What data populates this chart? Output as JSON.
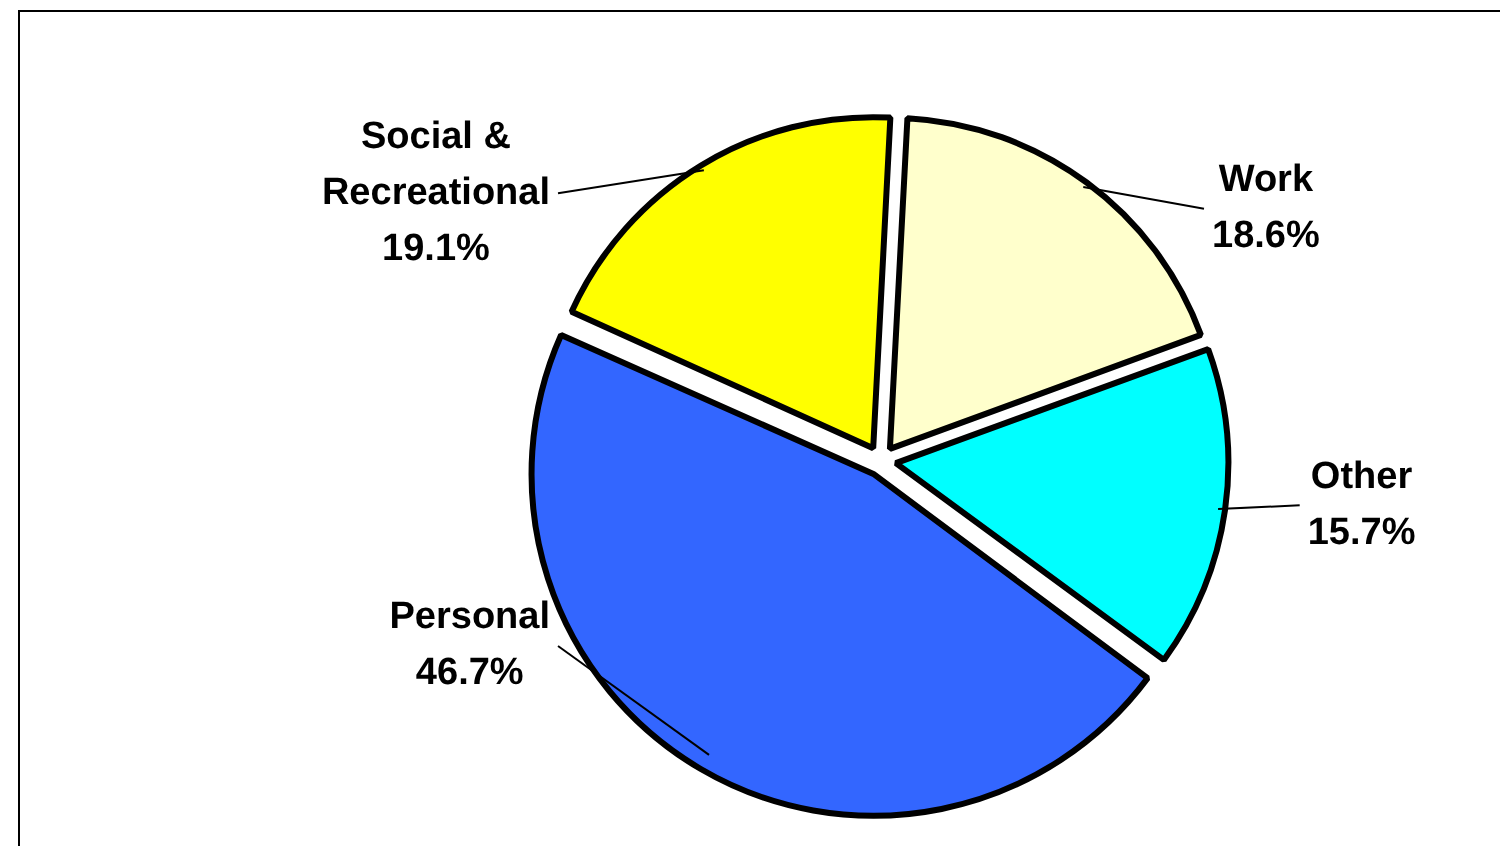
{
  "chart_data": {
    "type": "pie",
    "categories": [
      "Work",
      "Other",
      "Personal",
      "Social & Recreational"
    ],
    "values": [
      18.6,
      15.7,
      46.7,
      19.1
    ],
    "value_labels": [
      "18.6%",
      "15.7%",
      "46.7%",
      "19.1%"
    ],
    "colors": [
      "#ffffcc",
      "#00ffff",
      "#3366ff",
      "#ffff00"
    ],
    "legend": false
  }
}
